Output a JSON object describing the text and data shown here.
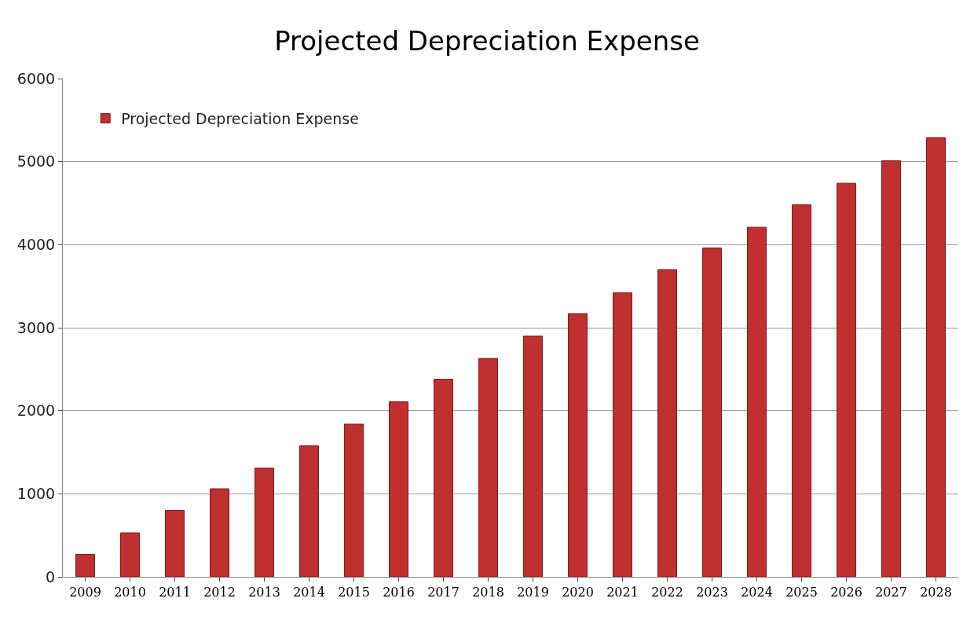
{
  "chart_data": {
    "type": "bar",
    "title": "Projected Depreciation Expense",
    "categories": [
      "2009",
      "2010",
      "2011",
      "2012",
      "2013",
      "2014",
      "2015",
      "2016",
      "2017",
      "2018",
      "2019",
      "2020",
      "2021",
      "2022",
      "2023",
      "2024",
      "2025",
      "2026",
      "2027",
      "2028"
    ],
    "series": [
      {
        "name": "Projected Depreciation Expense",
        "color": "#c0302e",
        "values": [
          270,
          530,
          800,
          1060,
          1310,
          1580,
          1840,
          2110,
          2380,
          2630,
          2900,
          3170,
          3420,
          3700,
          3960,
          4210,
          4480,
          4740,
          5010,
          5290
        ]
      }
    ],
    "ylim": [
      0,
      6000
    ],
    "yticks": [
      0,
      1000,
      2000,
      3000,
      4000,
      5000,
      6000
    ],
    "grid": "y",
    "legend": "top left"
  }
}
